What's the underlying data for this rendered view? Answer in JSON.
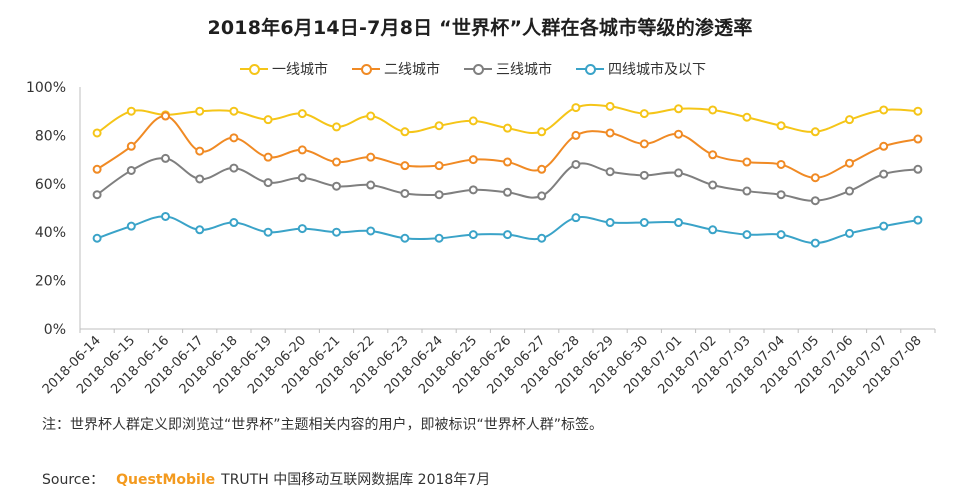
{
  "header": {
    "title": "2018年6月14日-7月8日 “世界杯”人群在各城市等级的渗透率"
  },
  "footer": {
    "note": "注：世界杯人群定义即浏览过“世界杯”主题相关内容的用户，即被标识“世界杯人群”标签。",
    "source_label": "Source：",
    "source_brand": "QuestMobile",
    "source_text": "TRUTH 中国移动互联网数据库 2018年7月"
  },
  "chart_data": {
    "type": "line",
    "title": "2018年6月14日-7月8日 “世界杯”人群在各城市等级的渗透率",
    "xlabel": "",
    "ylabel": "",
    "ylim": [
      0,
      100
    ],
    "yticks": [
      "0%",
      "20%",
      "40%",
      "60%",
      "80%",
      "100%"
    ],
    "grid": false,
    "legend_position": "top",
    "categories": [
      "2018-06-14",
      "2018-06-15",
      "2018-06-16",
      "2018-06-17",
      "2018-06-18",
      "2018-06-19",
      "2018-06-20",
      "2018-06-21",
      "2018-06-22",
      "2018-06-23",
      "2018-06-24",
      "2018-06-25",
      "2018-06-26",
      "2018-06-27",
      "2018-06-28",
      "2018-06-29",
      "2018-06-30",
      "2018-07-01",
      "2018-07-02",
      "2018-07-03",
      "2018-07-04",
      "2018-07-05",
      "2018-07-06",
      "2018-07-07",
      "2018-07-08"
    ],
    "series": [
      {
        "name": "一线城市",
        "color": "#f5c518",
        "values": [
          81,
          90,
          88.5,
          90,
          90,
          86.5,
          89,
          83.5,
          88,
          81.5,
          84,
          86,
          83,
          81.5,
          91.5,
          92,
          89,
          91,
          90.5,
          87.5,
          84,
          81.5,
          86.5,
          90.5,
          90
        ]
      },
      {
        "name": "二线城市",
        "color": "#f08a24",
        "values": [
          66,
          75.5,
          88,
          73.5,
          79,
          71,
          74,
          69,
          71,
          67.5,
          67.5,
          70,
          69,
          66,
          80,
          81,
          76.5,
          80.5,
          72,
          69,
          68,
          62.5,
          68.5,
          75.5,
          78.5
        ]
      },
      {
        "name": "三线城市",
        "color": "#7f7f7f",
        "values": [
          55.5,
          65.5,
          70.5,
          62,
          66.5,
          60.5,
          62.5,
          59,
          59.5,
          56,
          55.5,
          57.5,
          56.5,
          55,
          68,
          65,
          63.5,
          64.5,
          59.5,
          57,
          55.5,
          53,
          57,
          64,
          66
        ]
      },
      {
        "name": "四线城市及以下",
        "color": "#3aa3c8",
        "values": [
          37.5,
          42.5,
          46.5,
          41,
          44,
          40,
          41.5,
          40,
          40.5,
          37.5,
          37.5,
          39,
          39,
          37.5,
          46,
          44,
          44,
          44,
          41,
          39,
          39,
          35.5,
          39.5,
          42.5,
          45
        ]
      }
    ]
  }
}
